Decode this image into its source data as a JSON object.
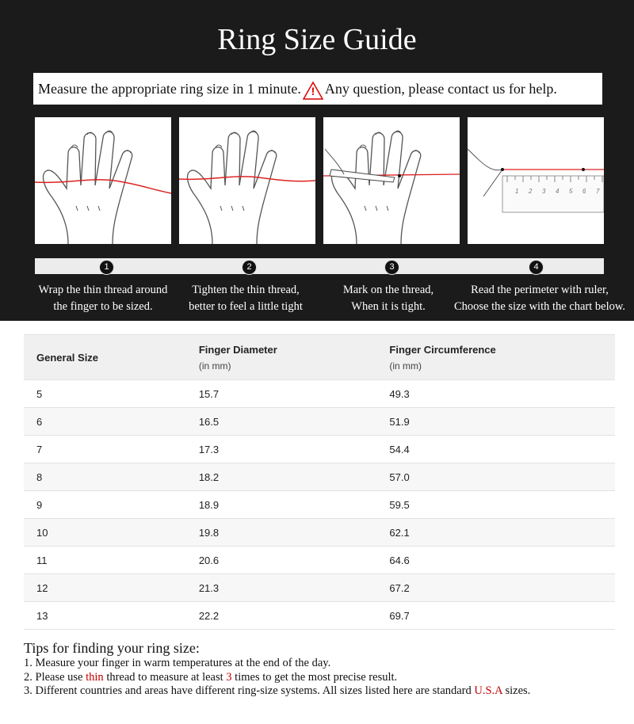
{
  "header": {
    "title": "Ring Size Guide",
    "intro": "Measure the appropriate ring size in 1 minute.",
    "warning_icon": "!",
    "contact": "Any question, please contact us for help."
  },
  "ruler_labels": [
    "1",
    "2",
    "3",
    "4",
    "5",
    "6",
    "7"
  ],
  "steps": [
    {
      "number": "1",
      "lines": [
        "Wrap the thin thread around",
        "the finger to be sized."
      ]
    },
    {
      "number": "2",
      "lines": [
        "Tighten the thin thread,",
        "better to feel a little tight"
      ]
    },
    {
      "number": "3",
      "lines": [
        "Mark on the thread,",
        "When it is tight."
      ]
    },
    {
      "number": "4",
      "lines": [
        "Read the perimeter with ruler,",
        "Choose the size with the chart below."
      ]
    }
  ],
  "table": {
    "headers": [
      {
        "title": "General Size"
      },
      {
        "title": "Finger Diameter",
        "unit": "(in mm)"
      },
      {
        "title": "Finger Circumference",
        "unit": "(in mm)"
      }
    ],
    "rows": [
      [
        "5",
        "15.7",
        "49.3"
      ],
      [
        "6",
        "16.5",
        "51.9"
      ],
      [
        "7",
        "17.3",
        "54.4"
      ],
      [
        "8",
        "18.2",
        "57.0"
      ],
      [
        "9",
        "18.9",
        "59.5"
      ],
      [
        "10",
        "19.8",
        "62.1"
      ],
      [
        "11",
        "20.6",
        "64.6"
      ],
      [
        "12",
        "21.3",
        "67.2"
      ],
      [
        "13",
        "22.2",
        "69.7"
      ]
    ]
  },
  "tips": {
    "title": "Tips for finding your ring size:",
    "items": [
      [
        {
          "text": "1. Measure your finger in warm temperatures at the end of the day."
        }
      ],
      [
        {
          "text": "2. Please use "
        },
        {
          "text": "thin",
          "color": "#c00000"
        },
        {
          "text": " thread to measure at least "
        },
        {
          "text": "3",
          "color": "#c00000"
        },
        {
          "text": " times to get the most precise result."
        }
      ],
      [
        {
          "text": "3. Different countries and areas have different ring-size systems. All sizes listed here are standard "
        },
        {
          "text": "U.S.A",
          "color": "#c00000"
        },
        {
          "text": " sizes."
        }
      ]
    ]
  }
}
